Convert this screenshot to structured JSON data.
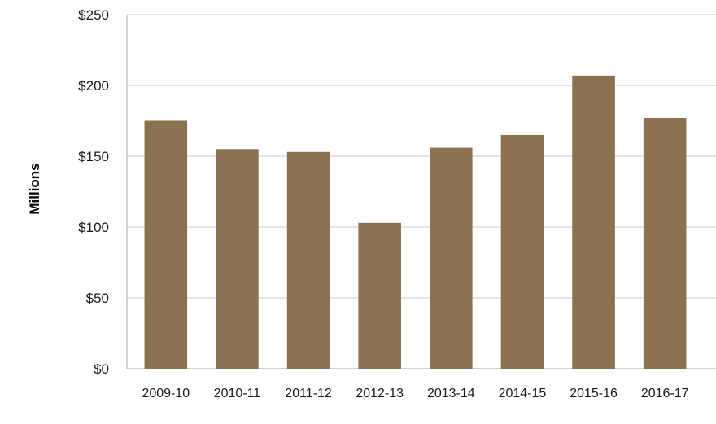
{
  "chart_data": {
    "type": "bar",
    "categories": [
      "2009-10",
      "2010-11",
      "2011-12",
      "2012-13",
      "2013-14",
      "2014-15",
      "2015-16",
      "2016-17"
    ],
    "values": [
      175,
      155,
      153,
      103,
      156,
      165,
      207,
      177
    ],
    "ylabel": "Millions",
    "xlabel": "",
    "ylim": [
      0,
      250
    ],
    "yticks": [
      0,
      50,
      100,
      150,
      200,
      250
    ],
    "ytick_labels": [
      "$0",
      "$50",
      "$100",
      "$150",
      "$200",
      "$250"
    ],
    "grid": true,
    "legend": "none",
    "colors": {
      "bar": "#8a7250",
      "grid": "#c8c8c8",
      "axis": "#a8a8a8"
    }
  }
}
